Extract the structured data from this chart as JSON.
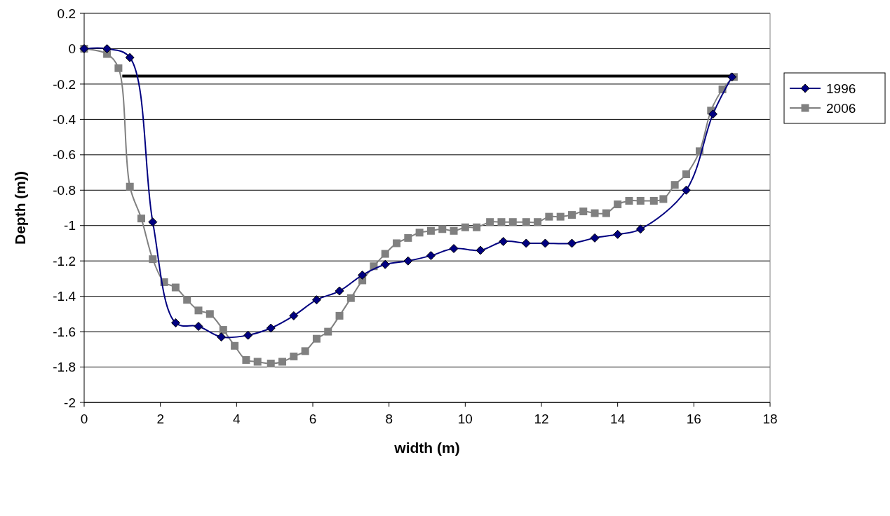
{
  "chart_data": {
    "type": "line",
    "xlabel": "width (m)",
    "ylabel": "Depth (m))",
    "xlim": [
      0,
      18
    ],
    "xticks": [
      0,
      2,
      4,
      6,
      8,
      10,
      12,
      14,
      16,
      18
    ],
    "ylim": [
      -2,
      0.2
    ],
    "yticks": [
      -2,
      -1.8,
      -1.6,
      -1.4,
      -1.2,
      -1,
      -0.8,
      -0.6,
      -0.4,
      -0.2,
      0,
      0.2
    ],
    "grid": "y",
    "legend": "right",
    "line_style": "solid",
    "series": [
      {
        "name": "1996",
        "color": "#000080",
        "marker": "diamond",
        "x": [
          0,
          0.6,
          1.2,
          1.8,
          2.4,
          3.0,
          3.6,
          4.3,
          4.9,
          5.5,
          6.1,
          6.7,
          7.3,
          7.9,
          8.5,
          9.1,
          9.7,
          10.4,
          11.0,
          11.6,
          12.1,
          12.8,
          13.4,
          14.0,
          14.6,
          15.8,
          16.5,
          17.0
        ],
        "values": [
          0,
          0,
          -0.05,
          -0.98,
          -1.55,
          -1.57,
          -1.63,
          -1.62,
          -1.58,
          -1.51,
          -1.42,
          -1.37,
          -1.28,
          -1.22,
          -1.2,
          -1.17,
          -1.13,
          -1.14,
          -1.09,
          -1.1,
          -1.1,
          -1.1,
          -1.07,
          -1.05,
          -1.02,
          -0.8,
          -0.37,
          -0.16
        ]
      },
      {
        "name": "2006",
        "color": "#808080",
        "marker": "square",
        "x": [
          0,
          0.6,
          0.9,
          1.2,
          1.5,
          1.8,
          2.1,
          2.4,
          2.7,
          3.0,
          3.3,
          3.65,
          3.95,
          4.25,
          4.55,
          4.9,
          5.2,
          5.5,
          5.8,
          6.1,
          6.4,
          6.7,
          7.0,
          7.3,
          7.6,
          7.9,
          8.2,
          8.5,
          8.8,
          9.1,
          9.4,
          9.7,
          10.0,
          10.3,
          10.65,
          10.95,
          11.25,
          11.6,
          11.9,
          12.2,
          12.5,
          12.8,
          13.1,
          13.4,
          13.7,
          14.0,
          14.3,
          14.6,
          14.95,
          15.2,
          15.5,
          15.8,
          16.15,
          16.45,
          16.75,
          17.05
        ],
        "values": [
          0,
          -0.03,
          -0.11,
          -0.78,
          -0.96,
          -1.19,
          -1.32,
          -1.35,
          -1.42,
          -1.48,
          -1.5,
          -1.59,
          -1.68,
          -1.76,
          -1.77,
          -1.78,
          -1.77,
          -1.74,
          -1.71,
          -1.64,
          -1.6,
          -1.51,
          -1.41,
          -1.31,
          -1.23,
          -1.16,
          -1.1,
          -1.07,
          -1.04,
          -1.03,
          -1.02,
          -1.03,
          -1.01,
          -1.01,
          -0.98,
          -0.98,
          -0.98,
          -0.98,
          -0.98,
          -0.95,
          -0.95,
          -0.94,
          -0.92,
          -0.93,
          -0.93,
          -0.88,
          -0.86,
          -0.86,
          -0.86,
          -0.85,
          -0.77,
          -0.71,
          -0.58,
          -0.35,
          -0.23,
          -0.16
        ]
      },
      {
        "color": "#000000",
        "marker": "none",
        "x": [
          1.0,
          17.05
        ],
        "values": [
          -0.155,
          -0.155
        ]
      }
    ]
  }
}
